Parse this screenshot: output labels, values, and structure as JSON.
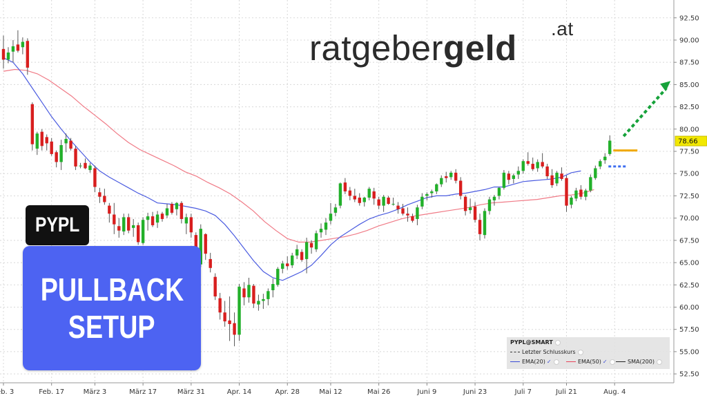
{
  "brand": {
    "main": "ratgeber",
    "bold": "geld",
    "suffix": ".at"
  },
  "ticker": "PYPL",
  "setup": {
    "line1": "PULLBACK",
    "line2": "SETUP"
  },
  "legend": {
    "title": "PYPL@SMART",
    "last_close": "Letzter Schlusskurs",
    "ema20": "EMA(20)",
    "ema50": "EMA(50)",
    "sma200": "SMA(200)"
  },
  "chart_data": {
    "type": "candlestick",
    "ylim": [
      51.5,
      94.5
    ],
    "y_ticks": [
      "52.50",
      "55.00",
      "57.50",
      "60.00",
      "62.50",
      "65.00",
      "67.50",
      "70.00",
      "72.50",
      "75.00",
      "77.50",
      "80.00",
      "82.50",
      "85.00",
      "87.50",
      "90.00",
      "92.50"
    ],
    "x_ticks": [
      "Feb. 3",
      "Feb. 17",
      "März 3",
      "März 17",
      "März 31",
      "Apr. 14",
      "Apr. 28",
      "Mai 12",
      "Mai 26",
      "Juni 9",
      "Juni 23",
      "Juli 7",
      "Juli 21",
      "Aug. 4"
    ],
    "x_tick_sessions": [
      0,
      10,
      19,
      29,
      39,
      49,
      59,
      68,
      78,
      88,
      98,
      108,
      117,
      127
    ],
    "last_price": "78.66",
    "candles": [
      [
        89,
        90.5,
        86.8,
        87.8
      ],
      [
        87.8,
        89.2,
        87.4,
        88.6
      ],
      [
        88.7,
        90,
        87.5,
        89.3
      ],
      [
        89.5,
        91.1,
        88.6,
        88.8
      ],
      [
        89.2,
        90.3,
        88.4,
        89.8
      ],
      [
        89.9,
        90.2,
        86.1,
        86.9
      ],
      [
        82.8,
        83,
        77.6,
        78.3
      ],
      [
        77.8,
        79.7,
        77.1,
        79.5
      ],
      [
        79.7,
        80,
        77.6,
        78.1
      ],
      [
        79.1,
        79.4,
        77.6,
        78.4
      ],
      [
        78.6,
        79,
        77,
        77.2
      ],
      [
        77.4,
        77.6,
        75.7,
        76.3
      ],
      [
        76.3,
        78.8,
        75.4,
        78.2
      ],
      [
        78.4,
        79.5,
        77.4,
        78.9
      ],
      [
        78.7,
        79,
        77.6,
        77.8
      ],
      [
        77.8,
        78.1,
        75.4,
        75.8
      ],
      [
        75.9,
        76.2,
        75.6,
        75.9
      ],
      [
        76.2,
        76.7,
        75.5,
        75.6
      ],
      [
        75.4,
        76.2,
        75.1,
        75.9
      ],
      [
        75.6,
        75.9,
        72.9,
        73.5
      ],
      [
        72.9,
        73.4,
        71.7,
        72.4
      ],
      [
        72.5,
        73.3,
        71.5,
        71.8
      ],
      [
        71.4,
        71.7,
        69.5,
        70.5
      ],
      [
        70.4,
        71.7,
        68.2,
        69.3
      ],
      [
        69.1,
        70,
        67.8,
        68.6
      ],
      [
        68.5,
        70.5,
        68.1,
        70.1
      ],
      [
        70.1,
        70.5,
        68.3,
        68.6
      ],
      [
        68.9,
        69.9,
        67.9,
        69.2
      ],
      [
        69.2,
        69.5,
        67,
        67.3
      ],
      [
        67.2,
        70.1,
        67,
        69.8
      ],
      [
        69.8,
        70.6,
        68.6,
        70.2
      ],
      [
        70.2,
        70.7,
        69,
        69.2
      ],
      [
        69.5,
        70.8,
        68.9,
        70.4
      ],
      [
        70.5,
        70.7,
        69.6,
        69.9
      ],
      [
        70.3,
        71.6,
        70,
        71.1
      ],
      [
        71.6,
        71.8,
        70.4,
        70.6
      ],
      [
        71,
        71.8,
        70.3,
        71.7
      ],
      [
        71.7,
        71.9,
        69.4,
        69.9
      ],
      [
        69.4,
        70.5,
        68.2,
        70.1
      ],
      [
        70.1,
        70.5,
        67.8,
        68.4
      ],
      [
        68.1,
        68.4,
        64.5,
        65
      ],
      [
        64.8,
        69.3,
        64.5,
        68.8
      ],
      [
        68.2,
        68.3,
        65.3,
        66
      ],
      [
        65.4,
        66.1,
        63.9,
        64.4
      ],
      [
        63.4,
        63.8,
        60.8,
        61.2
      ],
      [
        61,
        61.6,
        58.6,
        59.4
      ],
      [
        59.4,
        60.7,
        57.8,
        58.4
      ],
      [
        58.5,
        61.2,
        56.2,
        58.1
      ],
      [
        58.2,
        59.4,
        55.6,
        56.9
      ],
      [
        56.9,
        62.6,
        56.2,
        62.3
      ],
      [
        62.1,
        62.8,
        60.2,
        61.1
      ],
      [
        61.1,
        63.3,
        60.5,
        62.5
      ],
      [
        62.4,
        62.6,
        59.9,
        60.4
      ],
      [
        60.3,
        61.4,
        59.6,
        60.7
      ],
      [
        60.7,
        61.5,
        59.8,
        60.9
      ],
      [
        60.9,
        62.1,
        60.2,
        61.8
      ],
      [
        61.9,
        63.2,
        61.1,
        62.6
      ],
      [
        62.5,
        64.5,
        62.3,
        64.3
      ],
      [
        64.3,
        65.2,
        63.8,
        64.9
      ],
      [
        64.9,
        65.7,
        64.2,
        64.6
      ],
      [
        64.7,
        66.1,
        64.4,
        65.8
      ],
      [
        65.8,
        67,
        65.4,
        66.5
      ],
      [
        66.2,
        66.5,
        65.1,
        65.3
      ],
      [
        65.4,
        67.8,
        63.8,
        67.3
      ],
      [
        67.2,
        67.5,
        66,
        66.7
      ],
      [
        66.5,
        68.6,
        66.2,
        68.3
      ],
      [
        68.4,
        69.4,
        67.8,
        68.8
      ],
      [
        68.7,
        70,
        68.1,
        69.5
      ],
      [
        69.7,
        71.7,
        69.3,
        70.5
      ],
      [
        70.6,
        71.6,
        70.2,
        71.2
      ],
      [
        71.4,
        74,
        71.1,
        73.9
      ],
      [
        74,
        74.5,
        72.7,
        73
      ],
      [
        73.1,
        73.5,
        72,
        72.5
      ],
      [
        72.5,
        73.3,
        71.8,
        72.1
      ],
      [
        72.3,
        72.8,
        71.4,
        71.7
      ],
      [
        71.8,
        72.4,
        71.3,
        72.3
      ],
      [
        72.3,
        73.5,
        72,
        73.3
      ],
      [
        73,
        73.4,
        71.5,
        72.2
      ],
      [
        72.1,
        72.4,
        71,
        71.4
      ],
      [
        71.4,
        72.6,
        70.7,
        72.4
      ],
      [
        72.3,
        72.5,
        71.5,
        71.6
      ],
      [
        71.6,
        72.3,
        71.4,
        71.6
      ],
      [
        71.4,
        71.8,
        70.5,
        71
      ],
      [
        71.1,
        71.6,
        70.3,
        70.5
      ],
      [
        70.5,
        71.2,
        69.6,
        70.3
      ],
      [
        70.2,
        70.5,
        69.5,
        69.7
      ],
      [
        69.9,
        71.5,
        69.2,
        71.2
      ],
      [
        71.3,
        72.8,
        71,
        72.4
      ],
      [
        72.5,
        72.9,
        72,
        72.7
      ],
      [
        72.8,
        73.2,
        72.3,
        73
      ],
      [
        73,
        73.9,
        72.7,
        73.8
      ],
      [
        73.8,
        74.8,
        73.5,
        74.5
      ],
      [
        74.7,
        75.2,
        74,
        74.5
      ],
      [
        74.6,
        75.3,
        74.3,
        75.1
      ],
      [
        75.1,
        75.5,
        73.9,
        74.2
      ],
      [
        74.2,
        74.6,
        72.1,
        72.5
      ],
      [
        72.4,
        72.6,
        70.3,
        70.8
      ],
      [
        70.9,
        72.2,
        70.5,
        71.2
      ],
      [
        71.3,
        71.8,
        69.5,
        69.8
      ],
      [
        69.8,
        70.5,
        67.5,
        68.2
      ],
      [
        68.1,
        71.1,
        67.7,
        70.8
      ],
      [
        70.8,
        72.4,
        70.4,
        72.1
      ],
      [
        72,
        72.6,
        71.4,
        72.4
      ],
      [
        72.5,
        73.5,
        72.1,
        73.4
      ],
      [
        73.4,
        75.4,
        73.2,
        75.1
      ],
      [
        75,
        75.3,
        73.8,
        74.3
      ],
      [
        74.4,
        75,
        73.9,
        74.8
      ],
      [
        74.9,
        75.8,
        74.4,
        75.3
      ],
      [
        75.3,
        76.6,
        75,
        76.4
      ],
      [
        76.4,
        77.4,
        75.9,
        76.1
      ],
      [
        76.1,
        76.8,
        75.3,
        75.5
      ],
      [
        75.6,
        76.6,
        75.2,
        76.3
      ],
      [
        76.3,
        77.3,
        75.6,
        75.8
      ],
      [
        75.8,
        76.1,
        74.4,
        74.7
      ],
      [
        74.8,
        75.5,
        73.4,
        73.7
      ],
      [
        73.9,
        75.3,
        73.6,
        75.1
      ],
      [
        75,
        75.7,
        74.2,
        74.4
      ],
      [
        74.5,
        74.8,
        70.7,
        71.4
      ],
      [
        71.5,
        72.5,
        71.1,
        72.3
      ],
      [
        72.2,
        73.4,
        71.9,
        73.1
      ],
      [
        73.2,
        73.7,
        72.1,
        72.4
      ],
      [
        72.4,
        73.3,
        72,
        73.1
      ],
      [
        73.1,
        74.9,
        72.9,
        74.6
      ],
      [
        74.5,
        75.9,
        74.3,
        75.6
      ],
      [
        75.8,
        76.6,
        75.5,
        76.4
      ],
      [
        76.5,
        77.3,
        76.1,
        76.9
      ],
      [
        77.2,
        79.3,
        77,
        78.7
      ]
    ],
    "ema20": [
      88,
      87.5,
      86.2,
      84.6,
      83,
      81.4,
      80,
      78.7,
      77.5,
      76.3,
      75.3,
      74.6,
      74,
      73.4,
      72.8,
      72.3,
      71.7,
      71.6,
      71.5,
      71.3,
      71.1,
      70.8,
      70.3,
      69.3,
      68,
      66.6,
      65.2,
      64,
      63.3,
      63,
      63.5,
      64,
      64.7,
      65.8,
      67,
      67.9,
      68.6,
      69.3,
      69.9,
      70.3,
      70.6,
      71,
      71.5,
      71.9,
      72.3,
      72.5,
      72.5,
      72.7,
      72.8,
      73,
      73.2,
      73.5,
      73.5,
      73.8,
      74.1,
      74.2,
      74.3,
      74.4,
      74.6,
      75.1,
      75.3
    ],
    "ema50": [
      86.5,
      86.7,
      86.6,
      86.2,
      85.5,
      84.6,
      83.7,
      82.6,
      81.6,
      80.6,
      79.5,
      78.5,
      77.7,
      77.1,
      76.5,
      75.9,
      75.2,
      74.7,
      74,
      73.4,
      72.7,
      71.8,
      70.8,
      69.6,
      68.6,
      67.7,
      67.3,
      67.3,
      67.5,
      67.7,
      67.9,
      68.2,
      68.6,
      69.1,
      69.5,
      69.9,
      70.2,
      70.4,
      70.6,
      70.8,
      71,
      71.2,
      71.5,
      71.7,
      71.8,
      71.9,
      72,
      72.1,
      72.3,
      72.5,
      72.6,
      72.8,
      73.2
    ]
  }
}
